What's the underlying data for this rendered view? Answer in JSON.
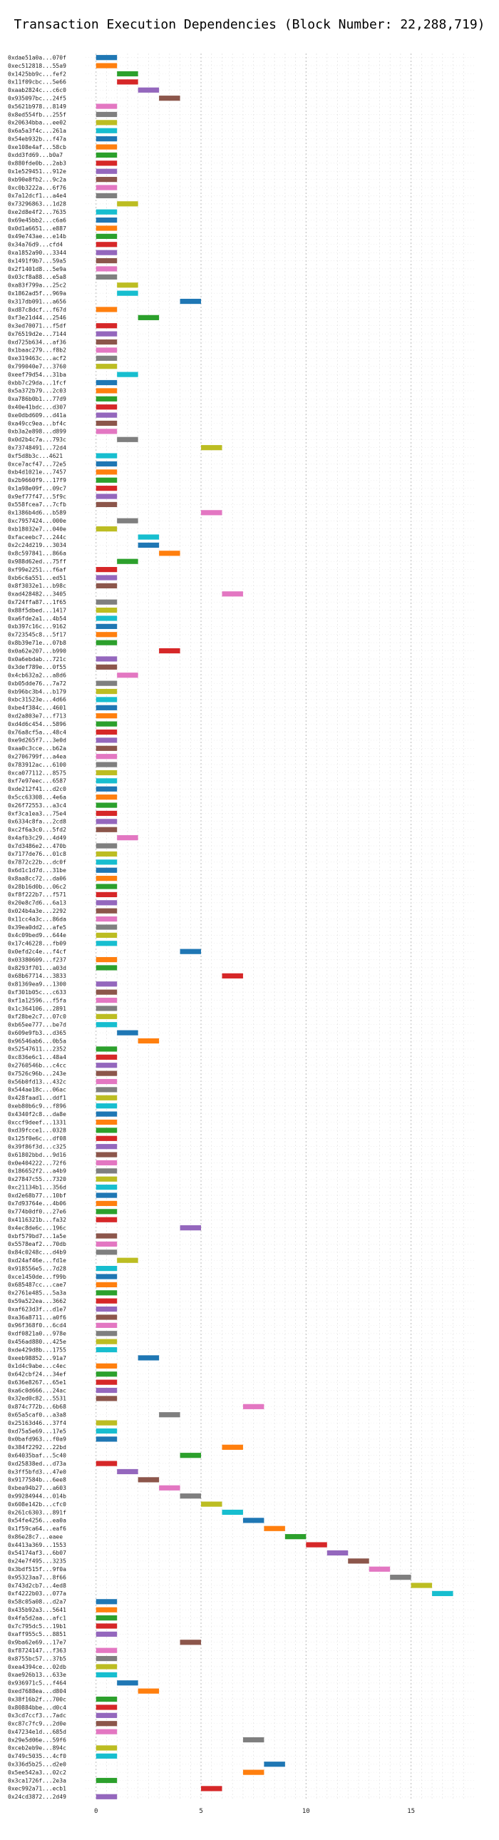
{
  "chart_data": {
    "type": "bar",
    "title": "Transaction Execution Dependencies (Block Number: 22,288,719)",
    "xlabel": "",
    "ylabel": "",
    "xlim": [
      -0.5,
      18
    ],
    "xticks": [
      0,
      5,
      10,
      15
    ],
    "grid": true,
    "legend": "none",
    "palette": [
      "#1f77b4",
      "#ff7f0e",
      "#2ca02c",
      "#d62728",
      "#9467bd",
      "#8c564b",
      "#e377c2",
      "#7f7f7f",
      "#bcbd22",
      "#17becf"
    ],
    "transactions": [
      {
        "hash": "0xdae51a0a...070f",
        "start": 0
      },
      {
        "hash": "0xec512818...55a9",
        "start": 0
      },
      {
        "hash": "0x1425bb9c...fef2",
        "start": 1
      },
      {
        "hash": "0x11f09cbc...5e66",
        "start": 1
      },
      {
        "hash": "0xaab2824c...c6c0",
        "start": 2
      },
      {
        "hash": "0x935097bc...24f5",
        "start": 3
      },
      {
        "hash": "0x5621b978...8149",
        "start": 0
      },
      {
        "hash": "0x8ed554fb...255f",
        "start": 0
      },
      {
        "hash": "0x20634bba...ee02",
        "start": 0
      },
      {
        "hash": "0x6a5a3f4c...261a",
        "start": 0
      },
      {
        "hash": "0x54eb932b...f47a",
        "start": 0
      },
      {
        "hash": "0xe108e4af...58cb",
        "start": 0
      },
      {
        "hash": "0xdd3fd69...b0a7",
        "start": 0
      },
      {
        "hash": "0x880fde0b...2ab3",
        "start": 0
      },
      {
        "hash": "0x1e529451...912e",
        "start": 0
      },
      {
        "hash": "0xb90e8fb2...9c2a",
        "start": 0
      },
      {
        "hash": "0xc0b3222a...6f76",
        "start": 0
      },
      {
        "hash": "0x7a12dcf1...a4e4",
        "start": 0
      },
      {
        "hash": "0x73296863...1d28",
        "start": 1
      },
      {
        "hash": "0xe2d8e4f2...7635",
        "start": 0
      },
      {
        "hash": "0x69e45bb2...c6a6",
        "start": 0
      },
      {
        "hash": "0x0d1a6651...e887",
        "start": 0
      },
      {
        "hash": "0x49e743ae...e14b",
        "start": 0
      },
      {
        "hash": "0x34a76d9...cfd4",
        "start": 0
      },
      {
        "hash": "0xa1852a90...3344",
        "start": 0
      },
      {
        "hash": "0x1491f9b7...59a5",
        "start": 0
      },
      {
        "hash": "0x2f1401d8...5e9a",
        "start": 0
      },
      {
        "hash": "0x03cf8a88...e5a8",
        "start": 0
      },
      {
        "hash": "0xa83f799a...25c2",
        "start": 1
      },
      {
        "hash": "0x1862ad5f...969a",
        "start": 1
      },
      {
        "hash": "0x317db091...a656",
        "start": 4
      },
      {
        "hash": "0xd87c8dcf...f67d",
        "start": 0
      },
      {
        "hash": "0xf3e21d44...2546",
        "start": 2
      },
      {
        "hash": "0x3ed70071...f5df",
        "start": 0
      },
      {
        "hash": "0x76519d2e...7144",
        "start": 0
      },
      {
        "hash": "0xd725b634...af36",
        "start": 0
      },
      {
        "hash": "0x1baac279...f8b2",
        "start": 0
      },
      {
        "hash": "0xe319463c...acf2",
        "start": 0
      },
      {
        "hash": "0x799040e7...3760",
        "start": 0
      },
      {
        "hash": "0xeef79d54...31ba",
        "start": 1
      },
      {
        "hash": "0xbb7c29da...1fcf",
        "start": 0
      },
      {
        "hash": "0x5a372b79...2c03",
        "start": 0
      },
      {
        "hash": "0xa786b0b1...77d9",
        "start": 0
      },
      {
        "hash": "0x40e41bdc...d307",
        "start": 0
      },
      {
        "hash": "0xe0dbd609...d41a",
        "start": 0
      },
      {
        "hash": "0xa49cc9ea...bf4c",
        "start": 0
      },
      {
        "hash": "0xb3a2e898...d899",
        "start": 0
      },
      {
        "hash": "0x0d2b4c7a...793c",
        "start": 1
      },
      {
        "hash": "0x73748491...72d4",
        "start": 5
      },
      {
        "hash": "0xf5d8b3c...4621",
        "start": 0
      },
      {
        "hash": "0xce7acf47...72e5",
        "start": 0
      },
      {
        "hash": "0xb4d1021e...7457",
        "start": 0
      },
      {
        "hash": "0x2b9660f9...17f9",
        "start": 0
      },
      {
        "hash": "0x1a98e09f...09c7",
        "start": 0
      },
      {
        "hash": "0x9ef77f47...5f9c",
        "start": 0
      },
      {
        "hash": "0x558fcea7...7cfb",
        "start": 0
      },
      {
        "hash": "0x1386b4d6...b589",
        "start": 5
      },
      {
        "hash": "0xc7957424...000e",
        "start": 1
      },
      {
        "hash": "0xb18032e7...040e",
        "start": 0
      },
      {
        "hash": "0xfaceebc7...244c",
        "start": 2
      },
      {
        "hash": "0x2c24d219...3034",
        "start": 2
      },
      {
        "hash": "0x8c597841...866a",
        "start": 3
      },
      {
        "hash": "0x988d62ed...75ff",
        "start": 1
      },
      {
        "hash": "0xf99e2251...f6af",
        "start": 0
      },
      {
        "hash": "0xb6c6a551...ed51",
        "start": 0
      },
      {
        "hash": "0x8f3032e1...b98c",
        "start": 0
      },
      {
        "hash": "0xad428482...3405",
        "start": 6
      },
      {
        "hash": "0x724ffa87...1f65",
        "start": 0
      },
      {
        "hash": "0x88f5dbed...1417",
        "start": 0
      },
      {
        "hash": "0xa6fde2a1...4b54",
        "start": 0
      },
      {
        "hash": "0xb397c16c...9162",
        "start": 0
      },
      {
        "hash": "0x723545c8...5f17",
        "start": 0
      },
      {
        "hash": "0x8b39e71e...07b8",
        "start": 0
      },
      {
        "hash": "0x0a62e207...b990",
        "start": 3
      },
      {
        "hash": "0x0a6ebdab...721c",
        "start": 0
      },
      {
        "hash": "0x3def789e...0f55",
        "start": 0
      },
      {
        "hash": "0x4cb632a2...a8d6",
        "start": 1
      },
      {
        "hash": "0xb05dde76...7a72",
        "start": 0
      },
      {
        "hash": "0xb96bc3b4...b179",
        "start": 0
      },
      {
        "hash": "0xbc31523e...4d66",
        "start": 0
      },
      {
        "hash": "0xbe4f384c...4601",
        "start": 0
      },
      {
        "hash": "0xd2a803e7...f713",
        "start": 0
      },
      {
        "hash": "0xd4d6c454...5896",
        "start": 0
      },
      {
        "hash": "0x76a8cf5a...48c4",
        "start": 0
      },
      {
        "hash": "0xe9d265f7...3e0d",
        "start": 0
      },
      {
        "hash": "0xaa0c3cce...b62a",
        "start": 0
      },
      {
        "hash": "0x2706799f...a4ea",
        "start": 0
      },
      {
        "hash": "0x783912ac...6100",
        "start": 0
      },
      {
        "hash": "0xca077112...8575",
        "start": 0
      },
      {
        "hash": "0xf7e97eec...6587",
        "start": 0
      },
      {
        "hash": "0xde212f41...d2c0",
        "start": 0
      },
      {
        "hash": "0x5cc63308...4e6a",
        "start": 0
      },
      {
        "hash": "0x26f72553...a3c4",
        "start": 0
      },
      {
        "hash": "0xf3ca1ea3...75e4",
        "start": 0
      },
      {
        "hash": "0x6334c8fa...2cd8",
        "start": 0
      },
      {
        "hash": "0xc2f6a3c0...5fd2",
        "start": 0
      },
      {
        "hash": "0x4afb3c29...4d49",
        "start": 1
      },
      {
        "hash": "0x7d3486e2...470b",
        "start": 0
      },
      {
        "hash": "0x7177de76...01c8",
        "start": 0
      },
      {
        "hash": "0x7872c22b...dc0f",
        "start": 0
      },
      {
        "hash": "0x6d1c1d7d...31be",
        "start": 0
      },
      {
        "hash": "0x8aa8cc72...da06",
        "start": 0
      },
      {
        "hash": "0x28b16d0b...06c2",
        "start": 0
      },
      {
        "hash": "0xf8f222b7...f571",
        "start": 0
      },
      {
        "hash": "0x20e8c7d6...6a13",
        "start": 0
      },
      {
        "hash": "0x024b4a3e...2292",
        "start": 0
      },
      {
        "hash": "0x11cc4a3c...86da",
        "start": 0
      },
      {
        "hash": "0x39ea0dd2...afe5",
        "start": 0
      },
      {
        "hash": "0x4c09bed9...644e",
        "start": 0
      },
      {
        "hash": "0x17c46228...fb09",
        "start": 0
      },
      {
        "hash": "0x0efd2c4e...f4cf",
        "start": 4
      },
      {
        "hash": "0x03380609...f237",
        "start": 0
      },
      {
        "hash": "0x8293f701...a03d",
        "start": 0
      },
      {
        "hash": "0x68b67714...3833",
        "start": 6
      },
      {
        "hash": "0x81369ea9...1300",
        "start": 0
      },
      {
        "hash": "0xf301b05c...c633",
        "start": 0
      },
      {
        "hash": "0xf1a12596...f5fa",
        "start": 0
      },
      {
        "hash": "0x1c364106...2891",
        "start": 0
      },
      {
        "hash": "0xf28be2c7...07c0",
        "start": 0
      },
      {
        "hash": "0xb65ee777...be7d",
        "start": 0
      },
      {
        "hash": "0x609e9fb3...d365",
        "start": 1
      },
      {
        "hash": "0x96546ab6...0b5a",
        "start": 2
      },
      {
        "hash": "0x52547611...2352",
        "start": 0
      },
      {
        "hash": "0xc836e6c1...48a4",
        "start": 0
      },
      {
        "hash": "0x2760546b...c4cc",
        "start": 0
      },
      {
        "hash": "0x7526c96b...243e",
        "start": 0
      },
      {
        "hash": "0x56b0fd13...432c",
        "start": 0
      },
      {
        "hash": "0x544ae18c...06ac",
        "start": 0
      },
      {
        "hash": "0x428faad1...ddf1",
        "start": 0
      },
      {
        "hash": "0xeb80b6c9...f896",
        "start": 0
      },
      {
        "hash": "0x4340f2c8...da8e",
        "start": 0
      },
      {
        "hash": "0xccf9deef...1331",
        "start": 0
      },
      {
        "hash": "0xd39fcce1...0328",
        "start": 0
      },
      {
        "hash": "0x125f0e6c...df08",
        "start": 0
      },
      {
        "hash": "0x39f86f3d...c325",
        "start": 0
      },
      {
        "hash": "0x61802bbd...9d16",
        "start": 0
      },
      {
        "hash": "0x0e404222...72f6",
        "start": 0
      },
      {
        "hash": "0x186652f2...a4b9",
        "start": 0
      },
      {
        "hash": "0x27847c55...7320",
        "start": 0
      },
      {
        "hash": "0xc21134b1...356d",
        "start": 0
      },
      {
        "hash": "0xd2e68b77...10bf",
        "start": 0
      },
      {
        "hash": "0x7d93764e...4b06",
        "start": 0
      },
      {
        "hash": "0x774b0df0...27e6",
        "start": 0
      },
      {
        "hash": "0x4116321b...fa32",
        "start": 0
      },
      {
        "hash": "0x4ec8de6c...196c",
        "start": 4
      },
      {
        "hash": "0xbf579bd7...1a5e",
        "start": 0
      },
      {
        "hash": "0x5578eaf2...70db",
        "start": 0
      },
      {
        "hash": "0x84c0248c...d4b9",
        "start": 0
      },
      {
        "hash": "0xd24af46e...fd1e",
        "start": 1
      },
      {
        "hash": "0x918556e5...7d28",
        "start": 0
      },
      {
        "hash": "0xce1450de...f99b",
        "start": 0
      },
      {
        "hash": "0x685487cc...cae7",
        "start": 0
      },
      {
        "hash": "0x2761e485...5a3a",
        "start": 0
      },
      {
        "hash": "0x59a522ea...3662",
        "start": 0
      },
      {
        "hash": "0xaf623d3f...d1e7",
        "start": 0
      },
      {
        "hash": "0xa36a8711...a0f6",
        "start": 0
      },
      {
        "hash": "0x96f368f0...6cd4",
        "start": 0
      },
      {
        "hash": "0xdf0821a0...978e",
        "start": 0
      },
      {
        "hash": "0x456ad880...425e",
        "start": 0
      },
      {
        "hash": "0xde429d8b...1755",
        "start": 0
      },
      {
        "hash": "0xeeb98852...91a7",
        "start": 2
      },
      {
        "hash": "0x1d4c9abe...c4ec",
        "start": 0
      },
      {
        "hash": "0x642cbf24...34ef",
        "start": 0
      },
      {
        "hash": "0x636e8267...65e1",
        "start": 0
      },
      {
        "hash": "0xa6c0d666...24ac",
        "start": 0
      },
      {
        "hash": "0x32ed0c82...5531",
        "start": 0
      },
      {
        "hash": "0x874c772b...6b68",
        "start": 7
      },
      {
        "hash": "0x65a5caf0...a3a8",
        "start": 3
      },
      {
        "hash": "0x25163d46...37f4",
        "start": 0
      },
      {
        "hash": "0xd75a5e69...17e5",
        "start": 0
      },
      {
        "hash": "0x0bafd963...f0a9",
        "start": 0
      },
      {
        "hash": "0x384f2292...22bd",
        "start": 6
      },
      {
        "hash": "0x64035baf...5c40",
        "start": 4
      },
      {
        "hash": "0xd25838ed...d73a",
        "start": 0
      },
      {
        "hash": "0x3ff5bfd3...47e0",
        "start": 1
      },
      {
        "hash": "0x9177584b...6ee8",
        "start": 2
      },
      {
        "hash": "0xbea94b27...a603",
        "start": 3
      },
      {
        "hash": "0x99284944...014b",
        "start": 4
      },
      {
        "hash": "0x608e142b...cfc0",
        "start": 5
      },
      {
        "hash": "0x261c6303...891f",
        "start": 6
      },
      {
        "hash": "0x54fe4256...ea0a",
        "start": 7
      },
      {
        "hash": "0x1f59ca64...eaf6",
        "start": 8
      },
      {
        "hash": "0x86e28c7...eaee",
        "start": 9
      },
      {
        "hash": "0x4413a369...1553",
        "start": 10
      },
      {
        "hash": "0x54174af3...6b07",
        "start": 11
      },
      {
        "hash": "0x24e7f495...3235",
        "start": 12
      },
      {
        "hash": "0x3bdf515f...9f0a",
        "start": 13
      },
      {
        "hash": "0x95323aa7...8f66",
        "start": 14
      },
      {
        "hash": "0x743d2cb7...4ed8",
        "start": 15
      },
      {
        "hash": "0xf4222b03...077a",
        "start": 16
      },
      {
        "hash": "0x58c05a08...d2a7",
        "start": 0
      },
      {
        "hash": "0x435b92a3...5641",
        "start": 0
      },
      {
        "hash": "0x4fa5d2aa...afc1",
        "start": 0
      },
      {
        "hash": "0x7c795dc5...19b1",
        "start": 0
      },
      {
        "hash": "0xaff955c5...8851",
        "start": 0
      },
      {
        "hash": "0x9ba62e69...17e7",
        "start": 4
      },
      {
        "hash": "0xf8724147...f363",
        "start": 0
      },
      {
        "hash": "0x8755bc57...37b5",
        "start": 0
      },
      {
        "hash": "0xea4394ce...02db",
        "start": 0
      },
      {
        "hash": "0xae926b13...633e",
        "start": 0
      },
      {
        "hash": "0x936971c5...f464",
        "start": 1
      },
      {
        "hash": "0xed7688ea...d804",
        "start": 2
      },
      {
        "hash": "0x38f16b2f...700c",
        "start": 0
      },
      {
        "hash": "0x80884bbe...d0c4",
        "start": 0
      },
      {
        "hash": "0x3cd7ccf3...7adc",
        "start": 0
      },
      {
        "hash": "0xc87c7fc9...2d0e",
        "start": 0
      },
      {
        "hash": "0x47234e1d...685d",
        "start": 0
      },
      {
        "hash": "0x29e5d06e...59f6",
        "start": 7
      },
      {
        "hash": "0xceb2eb9e...894c",
        "start": 0
      },
      {
        "hash": "0x749c5035...4cf0",
        "start": 0
      },
      {
        "hash": "0x336d5b25...d2e0",
        "start": 8
      },
      {
        "hash": "0x5ee542a3...02c2",
        "start": 7
      },
      {
        "hash": "0x3ca1726f...2e3a",
        "start": 0
      },
      {
        "hash": "0xec992a71...ecb1",
        "start": 5
      },
      {
        "hash": "0x24cd3872...2d49",
        "start": 0
      }
    ]
  }
}
